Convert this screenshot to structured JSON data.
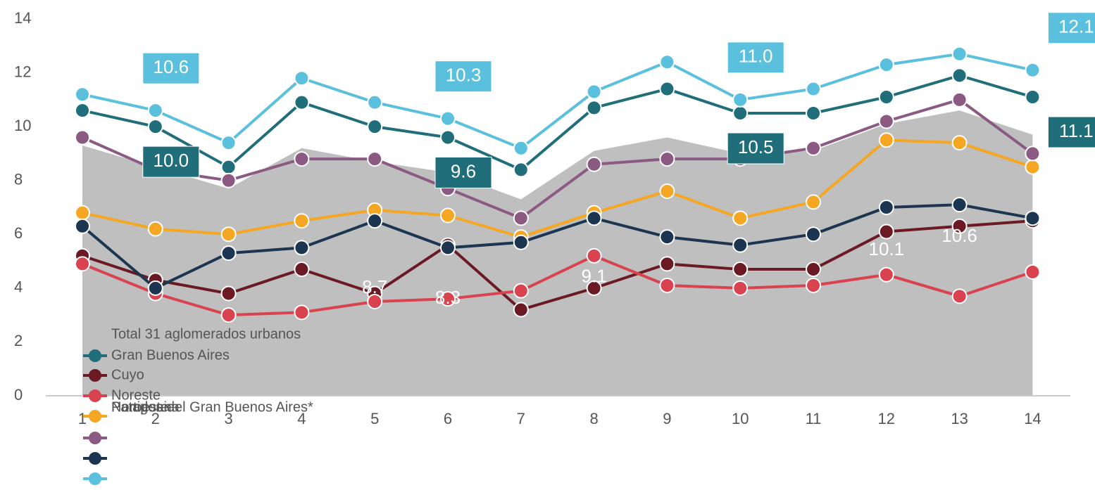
{
  "chart_data": {
    "type": "line",
    "categories": [
      "1",
      "2",
      "3",
      "4",
      "5",
      "6",
      "7",
      "8",
      "9",
      "10",
      "11",
      "12",
      "13",
      "14"
    ],
    "ylim": [
      0,
      14
    ],
    "yticks": [
      0,
      2,
      4,
      6,
      8,
      10,
      12,
      14
    ],
    "series": [
      {
        "name": "Total 31 aglomerados urbanos",
        "kind": "area",
        "color": "#bfbfbf",
        "values": [
          9.3,
          8.5,
          7.7,
          9.2,
          8.7,
          8.3,
          7.3,
          9.1,
          9.6,
          9.0,
          9.1,
          10.1,
          10.6,
          9.7
        ],
        "value_labels": [
          null,
          null,
          null,
          null,
          "8.7",
          "8.3",
          null,
          "9.1",
          null,
          null,
          null,
          "10.1",
          "10.6",
          "9.7"
        ]
      },
      {
        "name": "Gran Buenos Aires",
        "color": "#1f6e7a",
        "values": [
          10.6,
          10.0,
          8.5,
          10.9,
          10.0,
          9.6,
          8.4,
          10.7,
          11.4,
          10.5,
          10.5,
          11.1,
          11.9,
          11.1
        ],
        "value_labels": [
          null,
          "10.0",
          null,
          null,
          null,
          "9.6",
          null,
          null,
          null,
          "10.5",
          null,
          null,
          null,
          "11.1"
        ]
      },
      {
        "name": "Cuyo",
        "color": "#6b1a24",
        "values": [
          5.2,
          4.3,
          3.8,
          4.7,
          3.8,
          5.6,
          3.2,
          4.0,
          4.9,
          4.7,
          4.7,
          6.1,
          6.3,
          6.5
        ]
      },
      {
        "name": "Noreste",
        "color": "#d9434f",
        "values": [
          4.9,
          3.8,
          3.0,
          3.1,
          3.5,
          3.6,
          3.9,
          5.2,
          4.1,
          4.0,
          4.1,
          4.5,
          3.7,
          4.6
        ]
      },
      {
        "name": "Noroeste",
        "color": "#f5a623",
        "values": [
          6.8,
          6.2,
          6.0,
          6.5,
          6.9,
          6.7,
          5.9,
          6.8,
          7.6,
          6.6,
          7.2,
          9.5,
          9.4,
          8.5
        ]
      },
      {
        "name": "Pampeana",
        "color": "#8b5a83",
        "values": [
          9.6,
          8.4,
          8.0,
          8.8,
          8.8,
          7.7,
          6.6,
          8.6,
          8.8,
          8.8,
          9.2,
          10.2,
          11.0,
          9.0
        ]
      },
      {
        "name": "Patagonia",
        "color": "#1c3550",
        "values": [
          6.3,
          4.0,
          5.3,
          5.5,
          6.5,
          5.5,
          5.7,
          6.6,
          5.9,
          5.6,
          6.0,
          7.0,
          7.1,
          6.6
        ]
      },
      {
        "name": "Partidos del Gran Buenos Aires*",
        "color": "#5bc0de",
        "values": [
          11.2,
          10.6,
          9.4,
          11.8,
          10.9,
          10.3,
          9.2,
          11.3,
          12.4,
          11.0,
          11.4,
          12.3,
          12.7,
          12.1
        ],
        "value_labels": [
          null,
          "10.6",
          null,
          null,
          null,
          "10.3",
          null,
          null,
          null,
          "11.0",
          null,
          null,
          null,
          "12.1"
        ]
      }
    ]
  }
}
